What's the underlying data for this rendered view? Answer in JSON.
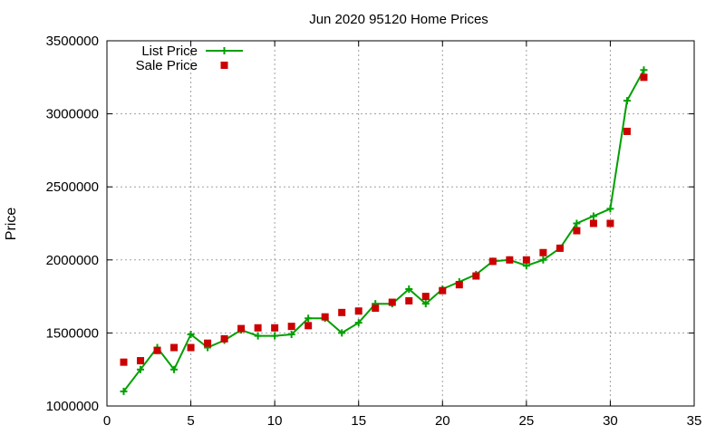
{
  "chart_data": {
    "type": "line",
    "title": "Jun 2020 95120 Home Prices",
    "xlabel": "",
    "ylabel": "Price",
    "xlim": [
      0,
      35
    ],
    "ylim": [
      1000000,
      3500000
    ],
    "xticks": [
      "0",
      "5",
      "10",
      "15",
      "20",
      "25",
      "30",
      "35"
    ],
    "yticks": [
      "1000000",
      "1500000",
      "2000000",
      "2500000",
      "3000000",
      "3500000"
    ],
    "grid": true,
    "legend_position": "top-left",
    "series": [
      {
        "name": "List Price",
        "style": "line-plus",
        "color": "#00a000",
        "x": [
          1,
          2,
          3,
          4,
          5,
          6,
          7,
          8,
          9,
          10,
          11,
          12,
          13,
          14,
          15,
          16,
          17,
          18,
          19,
          20,
          21,
          22,
          23,
          24,
          25,
          26,
          27,
          28,
          29,
          30,
          31,
          32
        ],
        "values": [
          1100000,
          1250000,
          1400000,
          1250000,
          1490000,
          1400000,
          1450000,
          1520000,
          1480000,
          1480000,
          1490000,
          1600000,
          1600000,
          1500000,
          1570000,
          1700000,
          1700000,
          1800000,
          1700000,
          1800000,
          1850000,
          1900000,
          1990000,
          2000000,
          1960000,
          2000000,
          2080000,
          2250000,
          2300000,
          2350000,
          3090000,
          3300000
        ]
      },
      {
        "name": "Sale Price",
        "style": "square-points",
        "color": "#cc0000",
        "x": [
          1,
          2,
          3,
          4,
          5,
          6,
          7,
          8,
          9,
          10,
          11,
          12,
          13,
          14,
          15,
          16,
          17,
          18,
          19,
          20,
          21,
          22,
          23,
          24,
          25,
          26,
          27,
          28,
          29,
          30,
          31,
          32
        ],
        "values": [
          1300000,
          1310000,
          1380000,
          1400000,
          1400000,
          1430000,
          1460000,
          1530000,
          1535000,
          1535000,
          1545000,
          1550000,
          1610000,
          1640000,
          1650000,
          1670000,
          1710000,
          1720000,
          1750000,
          1790000,
          1830000,
          1890000,
          1990000,
          2000000,
          2000000,
          2050000,
          2080000,
          2200000,
          2250000,
          2250000,
          2880000,
          3250000
        ]
      }
    ]
  }
}
